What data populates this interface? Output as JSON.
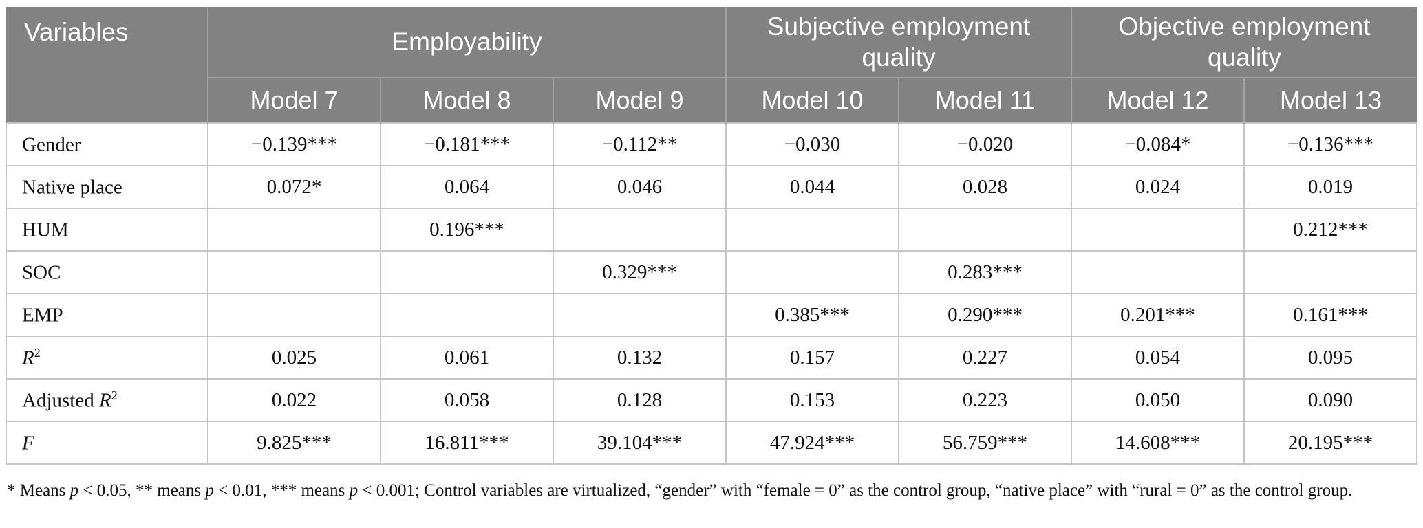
{
  "colors": {
    "header_bg": "#828282",
    "header_divider": "#a3a3a3",
    "header_text": "#ffffff",
    "body_border": "#c6c6c6",
    "body_text": "#111111"
  },
  "table": {
    "header": {
      "variables": "Variables",
      "groups": [
        {
          "label": "Employability",
          "span": 3
        },
        {
          "label": "Subjective employment quality",
          "span": 2
        },
        {
          "label": "Objective employment quality",
          "span": 2
        }
      ],
      "models": [
        "Model 7",
        "Model 8",
        "Model 9",
        "Model 10",
        "Model 11",
        "Model 12",
        "Model 13"
      ]
    },
    "rows": [
      {
        "label_prefix": "Gender",
        "label_italic": "",
        "label_sup": "",
        "values": [
          "−0.139***",
          "−0.181***",
          "−0.112**",
          "−0.030",
          "−0.020",
          "−0.084*",
          "−0.136***"
        ]
      },
      {
        "label_prefix": "Native place",
        "label_italic": "",
        "label_sup": "",
        "values": [
          "0.072*",
          "0.064",
          "0.046",
          "0.044",
          "0.028",
          "0.024",
          "0.019"
        ]
      },
      {
        "label_prefix": "HUM",
        "label_italic": "",
        "label_sup": "",
        "values": [
          "",
          "0.196***",
          "",
          "",
          "",
          "",
          "0.212***"
        ]
      },
      {
        "label_prefix": "SOC",
        "label_italic": "",
        "label_sup": "",
        "values": [
          "",
          "",
          "0.329***",
          "",
          "0.283***",
          "",
          ""
        ]
      },
      {
        "label_prefix": "EMP",
        "label_italic": "",
        "label_sup": "",
        "values": [
          "",
          "",
          "",
          "0.385***",
          "0.290***",
          "0.201***",
          "0.161***"
        ]
      },
      {
        "label_prefix": "",
        "label_italic": "R",
        "label_sup": "2",
        "values": [
          "0.025",
          "0.061",
          "0.132",
          "0.157",
          "0.227",
          "0.054",
          "0.095"
        ]
      },
      {
        "label_prefix": "Adjusted ",
        "label_italic": "R",
        "label_sup": "2",
        "values": [
          "0.022",
          "0.058",
          "0.128",
          "0.153",
          "0.223",
          "0.050",
          "0.090"
        ]
      },
      {
        "label_prefix": "",
        "label_italic": "F",
        "label_sup": "",
        "values": [
          "9.825***",
          "16.811***",
          "39.104***",
          "47.924***",
          "56.759***",
          "14.608***",
          "20.195***"
        ]
      }
    ]
  },
  "footnote": {
    "parts": [
      "* Means ",
      "p",
      " < 0.05, ** means ",
      "p",
      " < 0.01, *** means ",
      "p",
      " < 0.001; Control variables are virtualized, “gender” with “female = 0” as the control group, “native place” with “rural = 0” as the control group."
    ]
  }
}
